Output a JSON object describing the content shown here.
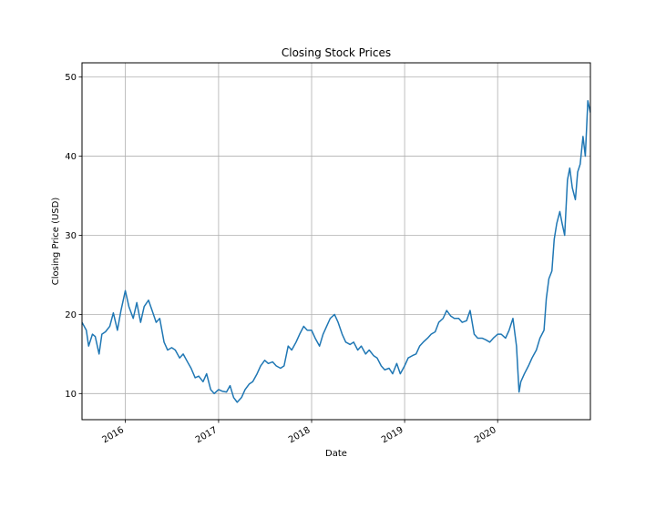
{
  "chart_data": {
    "type": "line",
    "title": "Closing Stock Prices",
    "xlabel": "Date",
    "ylabel": "Closing Price (USD)",
    "xlim": [
      "2015-07-15",
      "2020-12-30"
    ],
    "ylim": [
      6.7,
      51.8
    ],
    "yticks": [
      10,
      20,
      30,
      40,
      50
    ],
    "xticks": [
      {
        "date": "2016-01-01",
        "label": "2016"
      },
      {
        "date": "2017-01-01",
        "label": "2017"
      },
      {
        "date": "2018-01-01",
        "label": "2018"
      },
      {
        "date": "2019-01-01",
        "label": "2019"
      },
      {
        "date": "2020-01-01",
        "label": "2020"
      }
    ],
    "grid": true,
    "color": "#1f77b4",
    "series": [
      {
        "x": [
          "2015-07-15",
          "2015-08-01",
          "2015-08-10",
          "2015-08-25",
          "2015-09-05",
          "2015-09-20",
          "2015-10-01",
          "2015-10-15",
          "2015-11-01",
          "2015-11-15",
          "2015-12-01",
          "2015-12-15",
          "2016-01-01",
          "2016-01-15",
          "2016-02-01",
          "2016-02-15",
          "2016-03-01",
          "2016-03-15",
          "2016-04-01",
          "2016-04-15",
          "2016-05-01",
          "2016-05-15",
          "2016-06-01",
          "2016-06-15",
          "2016-07-01",
          "2016-07-15",
          "2016-08-01",
          "2016-08-15",
          "2016-09-01",
          "2016-09-15",
          "2016-10-01",
          "2016-10-15",
          "2016-11-01",
          "2016-11-15",
          "2016-12-01",
          "2016-12-15",
          "2017-01-01",
          "2017-01-15",
          "2017-02-01",
          "2017-02-15",
          "2017-03-01",
          "2017-03-15",
          "2017-04-01",
          "2017-04-15",
          "2017-05-01",
          "2017-05-15",
          "2017-06-01",
          "2017-06-15",
          "2017-07-01",
          "2017-07-15",
          "2017-08-01",
          "2017-08-15",
          "2017-09-01",
          "2017-09-15",
          "2017-10-01",
          "2017-10-15",
          "2017-11-01",
          "2017-11-15",
          "2017-12-01",
          "2017-12-15",
          "2018-01-01",
          "2018-01-15",
          "2018-02-01",
          "2018-02-15",
          "2018-03-01",
          "2018-03-15",
          "2018-04-01",
          "2018-04-15",
          "2018-05-01",
          "2018-05-15",
          "2018-06-01",
          "2018-06-15",
          "2018-07-01",
          "2018-07-15",
          "2018-08-01",
          "2018-08-15",
          "2018-09-01",
          "2018-09-15",
          "2018-10-01",
          "2018-10-15",
          "2018-11-01",
          "2018-11-15",
          "2018-12-01",
          "2018-12-15",
          "2019-01-01",
          "2019-01-15",
          "2019-02-01",
          "2019-02-15",
          "2019-03-01",
          "2019-03-15",
          "2019-04-01",
          "2019-04-15",
          "2019-05-01",
          "2019-05-15",
          "2019-06-01",
          "2019-06-15",
          "2019-07-01",
          "2019-07-15",
          "2019-08-01",
          "2019-08-15",
          "2019-09-01",
          "2019-09-15",
          "2019-10-01",
          "2019-10-15",
          "2019-11-01",
          "2019-11-15",
          "2019-12-01",
          "2019-12-15",
          "2020-01-01",
          "2020-01-15",
          "2020-02-01",
          "2020-02-15",
          "2020-03-01",
          "2020-03-15",
          "2020-03-25",
          "2020-04-01",
          "2020-04-15",
          "2020-05-01",
          "2020-05-15",
          "2020-06-01",
          "2020-06-15",
          "2020-07-01",
          "2020-07-10",
          "2020-07-20",
          "2020-08-01",
          "2020-08-10",
          "2020-08-20",
          "2020-09-01",
          "2020-09-10",
          "2020-09-20",
          "2020-10-01",
          "2020-10-10",
          "2020-10-20",
          "2020-11-01",
          "2020-11-10",
          "2020-11-20",
          "2020-12-01",
          "2020-12-10",
          "2020-12-20",
          "2020-12-30"
        ],
        "y": [
          19.0,
          18.0,
          16.0,
          17.5,
          17.2,
          15.0,
          17.5,
          17.8,
          18.5,
          20.2,
          18.0,
          20.5,
          23.0,
          21.0,
          19.5,
          21.5,
          19.0,
          21.0,
          21.8,
          20.5,
          19.0,
          19.5,
          16.5,
          15.5,
          15.8,
          15.5,
          14.5,
          15.0,
          14.0,
          13.2,
          12.0,
          12.2,
          11.5,
          12.5,
          10.5,
          10.0,
          10.5,
          10.3,
          10.2,
          11.0,
          9.5,
          8.9,
          9.5,
          10.5,
          11.2,
          11.5,
          12.5,
          13.5,
          14.2,
          13.8,
          14.0,
          13.5,
          13.2,
          13.5,
          16.0,
          15.5,
          16.5,
          17.5,
          18.5,
          18.0,
          18.0,
          17.0,
          16.0,
          17.5,
          18.5,
          19.5,
          20.0,
          19.0,
          17.5,
          16.5,
          16.2,
          16.5,
          15.5,
          16.0,
          15.0,
          15.5,
          14.8,
          14.5,
          13.5,
          13.0,
          13.2,
          12.5,
          13.8,
          12.5,
          13.5,
          14.5,
          14.8,
          15.0,
          16.0,
          16.5,
          17.0,
          17.5,
          17.8,
          19.0,
          19.5,
          20.5,
          19.8,
          19.5,
          19.5,
          19.0,
          19.2,
          20.5,
          17.5,
          17.0,
          17.0,
          16.8,
          16.5,
          17.0,
          17.5,
          17.5,
          17.0,
          18.0,
          19.5,
          16.0,
          10.2,
          11.5,
          12.5,
          13.5,
          14.5,
          15.5,
          17.0,
          18.0,
          22.0,
          24.5,
          25.5,
          29.5,
          31.5,
          33.0,
          31.5,
          30.0,
          37.0,
          38.5,
          36.0,
          34.5,
          38.0,
          39.0,
          42.5,
          40.0,
          47.0,
          45.5
        ]
      }
    ]
  }
}
